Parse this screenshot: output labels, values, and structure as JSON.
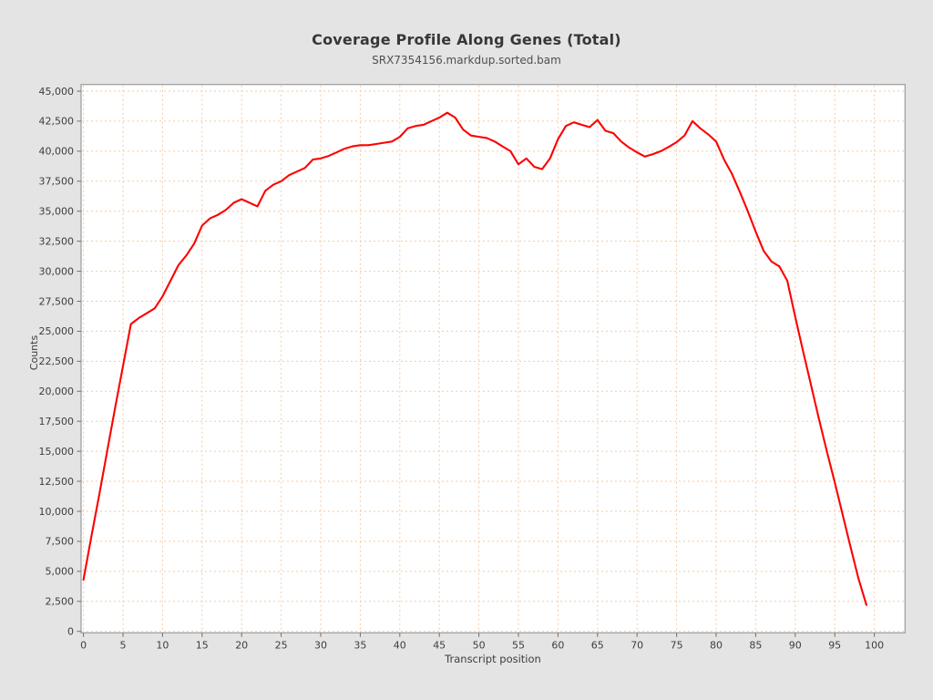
{
  "chart_data": {
    "type": "line",
    "title": "Coverage Profile Along Genes (Total)",
    "subtitle": "SRX7354156.markdup.sorted.bam",
    "xlabel": "Transcript position",
    "ylabel": "Counts",
    "xlim": [
      0,
      100
    ],
    "ylim": [
      0,
      45000
    ],
    "grid": true,
    "legend_position": "none",
    "x_ticks": {
      "values": [
        0,
        5,
        10,
        15,
        20,
        25,
        30,
        35,
        40,
        45,
        50,
        55,
        60,
        65,
        70,
        75,
        80,
        85,
        90,
        95,
        100
      ],
      "labels": [
        "0",
        "5",
        "10",
        "15",
        "20",
        "25",
        "30",
        "35",
        "40",
        "45",
        "50",
        "55",
        "60",
        "65",
        "70",
        "75",
        "80",
        "85",
        "90",
        "95",
        "100"
      ]
    },
    "y_ticks": {
      "values": [
        0,
        2500,
        5000,
        7500,
        10000,
        12500,
        15000,
        17500,
        20000,
        22500,
        25000,
        27500,
        30000,
        32500,
        35000,
        37500,
        40000,
        42500,
        45000
      ],
      "labels": [
        "0",
        "2,500",
        "5,000",
        "7,500",
        "10,000",
        "12,500",
        "15,000",
        "17,500",
        "20,000",
        "22,500",
        "25,000",
        "27,500",
        "30,000",
        "32,500",
        "35,000",
        "37,500",
        "40,000",
        "42,500",
        "45,000"
      ]
    },
    "series": [
      {
        "name": "SRX7354156.markdup.sorted.bam",
        "color": "#fc0101",
        "x": [
          0,
          1,
          2,
          3,
          4,
          5,
          6,
          7,
          8,
          9,
          10,
          11,
          12,
          13,
          14,
          15,
          16,
          17,
          18,
          19,
          20,
          21,
          22,
          23,
          24,
          25,
          26,
          27,
          28,
          29,
          30,
          31,
          32,
          33,
          34,
          35,
          36,
          37,
          38,
          39,
          40,
          41,
          42,
          43,
          44,
          45,
          46,
          47,
          48,
          49,
          50,
          51,
          52,
          53,
          54,
          55,
          56,
          57,
          58,
          59,
          60,
          61,
          62,
          63,
          64,
          65,
          66,
          67,
          68,
          69,
          70,
          71,
          72,
          73,
          74,
          75,
          76,
          77,
          78,
          79,
          80,
          81,
          82,
          83,
          84,
          85,
          86,
          87,
          88,
          89,
          90,
          91,
          92,
          93,
          94,
          95,
          96,
          97,
          98,
          99
        ],
        "values": [
          4300,
          7900,
          11400,
          15000,
          18600,
          22100,
          25600,
          26100,
          26500,
          26900,
          27900,
          29200,
          30500,
          31300,
          32300,
          33800,
          34400,
          34700,
          35100,
          35700,
          36000,
          35700,
          35400,
          36700,
          37200,
          37500,
          38000,
          38300,
          38600,
          39300,
          39400,
          39600,
          39900,
          40200,
          40400,
          40500,
          40500,
          40600,
          40700,
          40800,
          41200,
          41900,
          42100,
          42200,
          42500,
          42800,
          43200,
          42800,
          41800,
          41300,
          41200,
          41100,
          40800,
          40400,
          40000,
          38900,
          39400,
          38700,
          38500,
          39400,
          41000,
          42100,
          42400,
          42200,
          42000,
          42600,
          41700,
          41500,
          40800,
          40300,
          39900,
          39550,
          39750,
          40000,
          40350,
          40750,
          41300,
          42500,
          41900,
          41400,
          40800,
          39300,
          38100,
          36600,
          35000,
          33300,
          31700,
          30800,
          30400,
          29200,
          26200,
          23300,
          20500,
          17700,
          15000,
          12400,
          9700,
          7000,
          4400,
          2200
        ]
      }
    ],
    "colors": {
      "page_background": "#e4e4e4",
      "plot_background": "#ffffff",
      "grid": "#f5caa2",
      "border": "#9b9b9b",
      "axis": "#6e6e6e",
      "text": "#3d3d3d",
      "line": "#fc0101"
    }
  }
}
